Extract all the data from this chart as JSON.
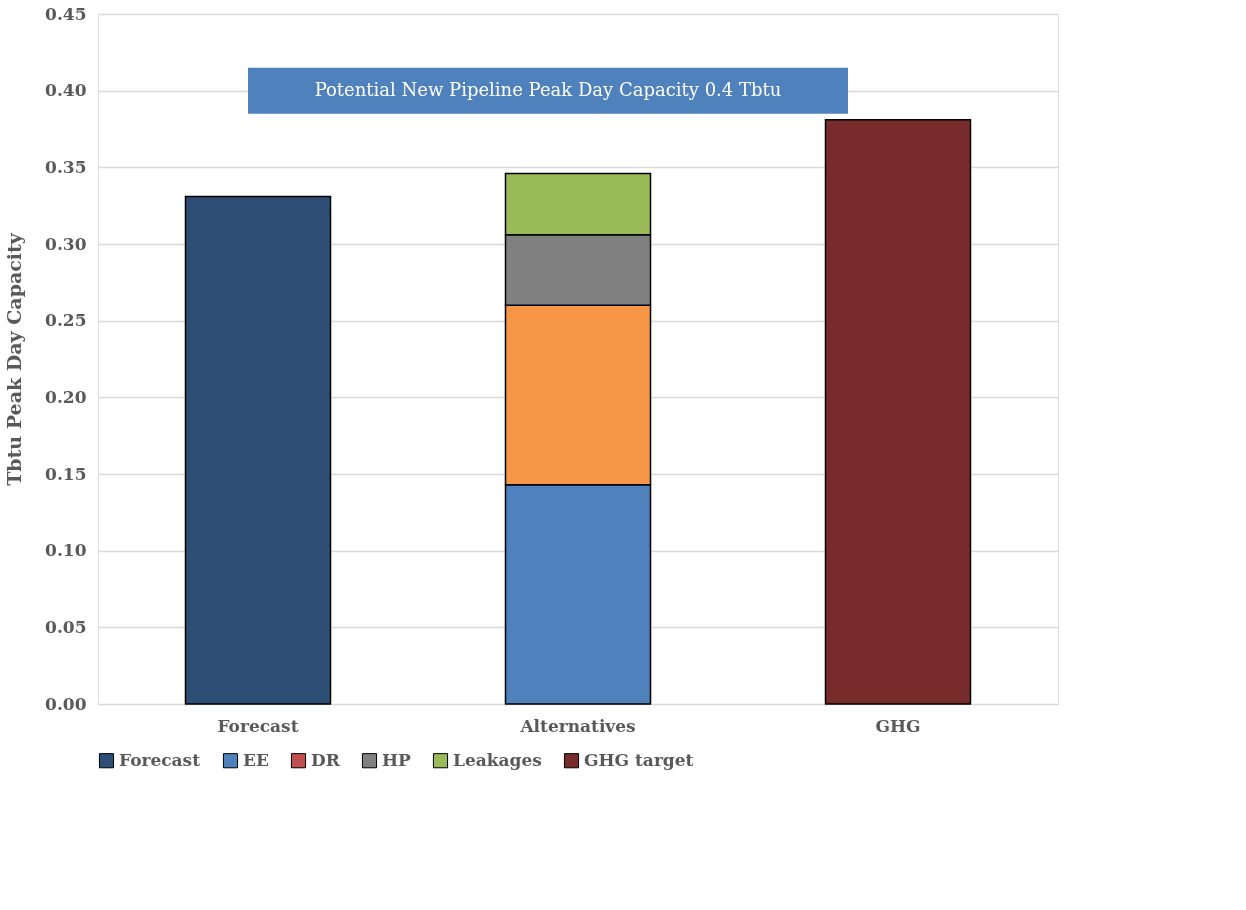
{
  "chart_data": {
    "type": "bar",
    "stacked": true,
    "ylabel": "Tbtu Peak Day Capacity",
    "categories": [
      "Forecast",
      "Alternatives",
      "GHG"
    ],
    "series": [
      {
        "name": "Forecast",
        "color": "#2e4f75",
        "values": [
          0.331,
          null,
          null
        ]
      },
      {
        "name": "EE",
        "color": "#4f81bd",
        "values": [
          null,
          0.143,
          null
        ]
      },
      {
        "name": "DR",
        "color": "#c0504d",
        "values": [
          null,
          null,
          null
        ]
      },
      {
        "color": "#f79646",
        "values": [
          null,
          0.117,
          null
        ]
      },
      {
        "name": "HP",
        "color": "#808080",
        "values": [
          null,
          0.046,
          null
        ]
      },
      {
        "name": "Leakages",
        "color": "#9bbb59",
        "values": [
          null,
          0.04,
          null
        ]
      },
      {
        "name": "GHG target",
        "color": "#772b2b",
        "values": [
          null,
          null,
          0.381
        ]
      }
    ],
    "ylim": [
      0,
      0.45
    ],
    "yticks": [
      {
        "value": 0,
        "label": "0.00"
      },
      {
        "value": 0.05,
        "label": "0.05"
      },
      {
        "value": 0.1,
        "label": "0.10"
      },
      {
        "value": 0.15,
        "label": "0.15"
      },
      {
        "value": 0.2,
        "label": "0.20"
      },
      {
        "value": 0.25,
        "label": "0.25"
      },
      {
        "value": 0.3,
        "label": "0.30"
      },
      {
        "value": 0.35,
        "label": "0.35"
      },
      {
        "value": 0.4,
        "label": "0.40"
      },
      {
        "value": 0.45,
        "label": "0.45"
      }
    ],
    "grid": "y",
    "legend": "bottom",
    "ref_lines": [
      {
        "axis": "y",
        "value": 0.4,
        "label": "Potential New Pipeline Peak Day Capacity 0.4 Tbtu",
        "color": "#4f81bd"
      }
    ]
  }
}
